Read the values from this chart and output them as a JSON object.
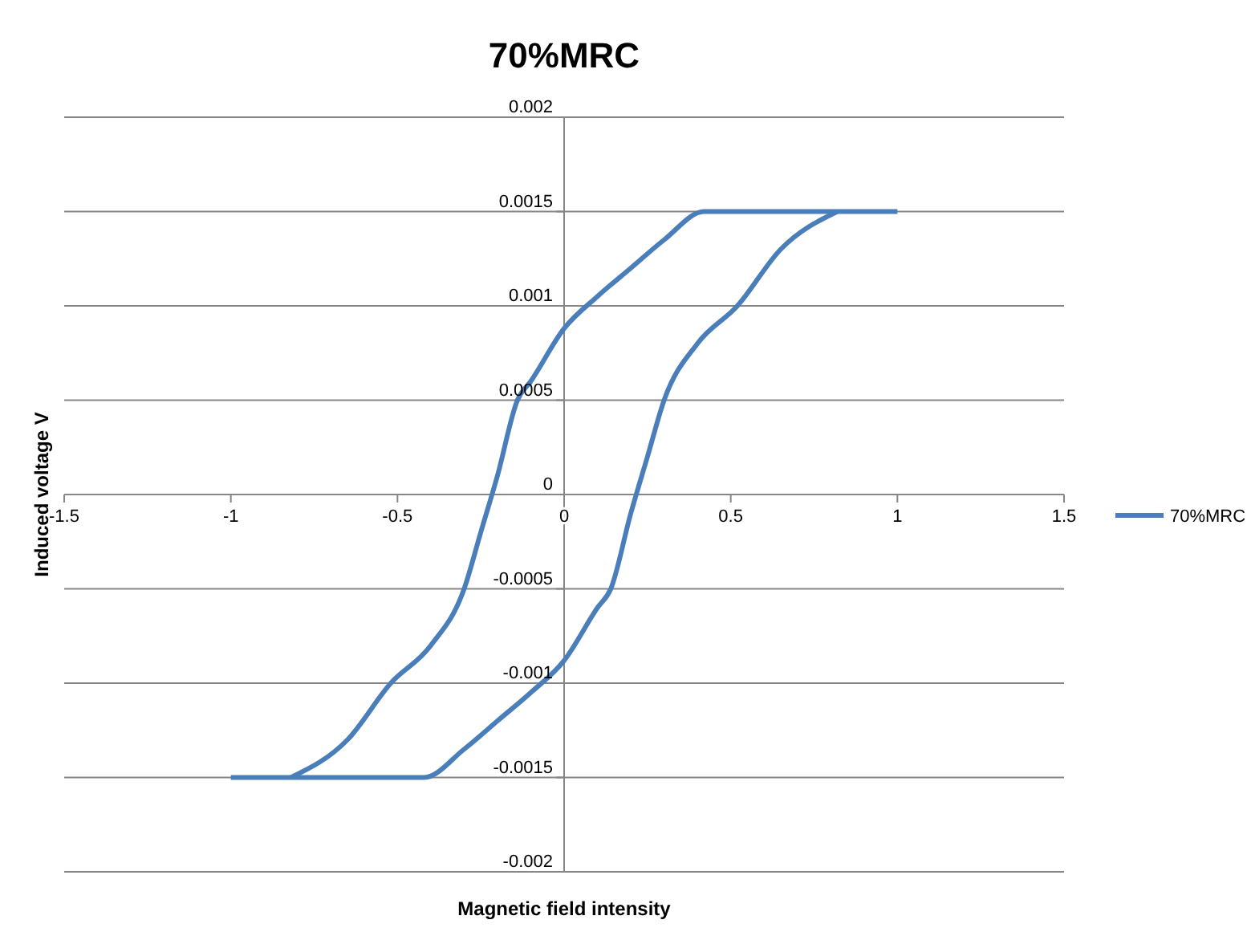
{
  "chart_data": {
    "type": "line",
    "title": "70%MRC",
    "xlabel": "Magnetic field intensity",
    "ylabel": "Induced voltage V",
    "xlim": [
      -1.5,
      1.5
    ],
    "xticks": [
      -1.5,
      -1,
      -0.5,
      0,
      0.5,
      1,
      1.5
    ],
    "ylim": [
      -0.002,
      0.002
    ],
    "yticks": [
      -0.002,
      -0.0015,
      -0.001,
      -0.0005,
      0,
      0.0005,
      0.001,
      0.0015,
      0.002
    ],
    "grid": "y",
    "legend": "right",
    "marker": "none",
    "line_style": "solid",
    "series": [
      {
        "name": "70%MRC",
        "color": "#4a7ebb",
        "x": [
          -0.82,
          -0.65,
          -0.52,
          -0.4,
          -0.3,
          -0.25,
          -0.2,
          -0.14,
          -0.1,
          0,
          0.1,
          0.2,
          0.3,
          0.42,
          1
        ],
        "values": [
          -0.0015,
          -0.0013,
          -0.001,
          -0.0008,
          -0.0005,
          -0.0002,
          0.0001,
          0.0005,
          0.0006,
          0.00088,
          0.00105,
          0.0012,
          0.00135,
          0.0015,
          0.0015
        ]
      },
      {
        "color": "#4a7ebb",
        "x": [
          -1,
          -0.42,
          -0.3,
          -0.2,
          -0.1,
          0,
          0.1,
          0.14,
          0.2,
          0.25,
          0.3,
          0.4,
          0.52,
          0.65,
          0.82
        ],
        "values": [
          -0.0015,
          -0.0015,
          -0.00135,
          -0.0012,
          -0.00105,
          -0.00088,
          -0.0006,
          -0.0005,
          -0.0001,
          0.0002,
          0.0005,
          0.0008,
          0.001,
          0.0013,
          0.0015
        ]
      }
    ]
  }
}
